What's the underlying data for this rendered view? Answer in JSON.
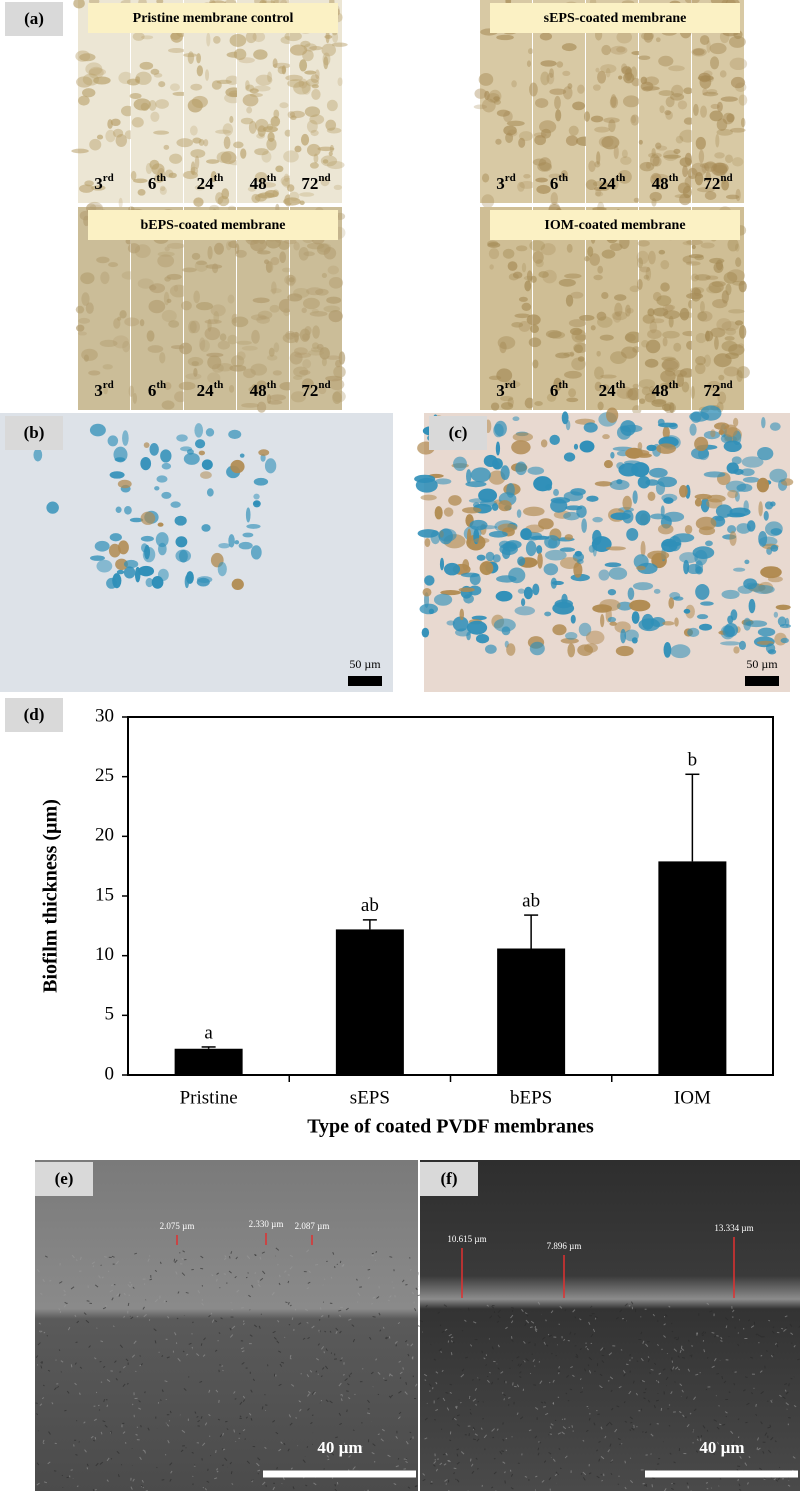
{
  "panel_a": {
    "label": "(a)",
    "groups": [
      {
        "title": "Pristine membrane control",
        "days": [
          {
            "number": "3",
            "suffix": "rd"
          },
          {
            "number": "6",
            "suffix": "th"
          },
          {
            "number": "24",
            "suffix": "th"
          },
          {
            "number": "48",
            "suffix": "th"
          },
          {
            "number": "72",
            "suffix": "nd"
          }
        ]
      },
      {
        "title": "sEPS-coated membrane",
        "days": [
          {
            "number": "3",
            "suffix": "rd"
          },
          {
            "number": "6",
            "suffix": "th"
          },
          {
            "number": "24",
            "suffix": "th"
          },
          {
            "number": "48",
            "suffix": "th"
          },
          {
            "number": "72",
            "suffix": "nd"
          }
        ]
      },
      {
        "title": "bEPS-coated membrane",
        "days": [
          {
            "number": "3",
            "suffix": "rd"
          },
          {
            "number": "6",
            "suffix": "th"
          },
          {
            "number": "24",
            "suffix": "th"
          },
          {
            "number": "48",
            "suffix": "th"
          },
          {
            "number": "72",
            "suffix": "nd"
          }
        ]
      },
      {
        "title": "IOM-coated membrane",
        "days": [
          {
            "number": "3",
            "suffix": "rd"
          },
          {
            "number": "6",
            "suffix": "th"
          },
          {
            "number": "24",
            "suffix": "th"
          },
          {
            "number": "48",
            "suffix": "th"
          },
          {
            "number": "72",
            "suffix": "nd"
          }
        ]
      }
    ]
  },
  "panel_b": {
    "label": "(b)",
    "scale_bar": "50 µm"
  },
  "panel_c": {
    "label": "(c)",
    "scale_bar": "50 µm"
  },
  "chart_data": {
    "type": "bar",
    "panel_label": "(d)",
    "x_label": "Type of coated PVDF membranes",
    "y_label": "Biofilm thickness (µm)",
    "categories": [
      "Pristine",
      "sEPS",
      "bEPS",
      "IOM"
    ],
    "values": [
      2.2,
      12.2,
      10.6,
      17.9
    ],
    "errors": [
      0.15,
      0.8,
      2.8,
      7.3
    ],
    "annotations": [
      "a",
      "ab",
      "ab",
      "b"
    ],
    "color": "#000000",
    "ylim": [
      0,
      30
    ],
    "yticks": [
      0,
      5,
      10,
      15,
      20,
      25,
      30
    ]
  },
  "panel_e": {
    "label": "(e)",
    "measurements": [
      "2.075 µm",
      "2.330 µm",
      "2.087 µm"
    ],
    "scale_bar": "40 µm"
  },
  "panel_f": {
    "label": "(f)",
    "measurements": [
      "10.615 µm",
      "7.896 µm",
      "13.334 µm"
    ],
    "scale_bar": "40 µm"
  }
}
